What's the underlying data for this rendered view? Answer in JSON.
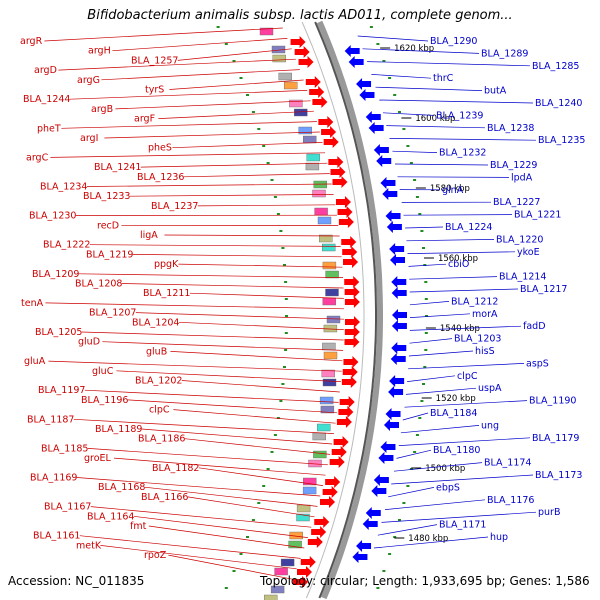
{
  "title": "Bifidobacterium animalis subsp. lactis AD011, complete genom...",
  "accession_text": "Accession: NC_011835",
  "topology_text": "Topology: circular; Length: 1,933,695 bp; Genes: 1,586",
  "colors": {
    "forward_label": "#cc0000",
    "reverse_label": "#0000cc",
    "forward_arrow": "#ff0000",
    "reverse_arrow": "#0000ff",
    "backbone": "#777777",
    "tick": "#228b22"
  },
  "scale_ticks": [
    "1620 kbp",
    "1600 kbp",
    "1580 kbp",
    "1560 kbp",
    "1540 kbp",
    "1520 kbp",
    "1500 kbp",
    "1480 kbp"
  ],
  "forward_genes": [
    "argR",
    "argH",
    "BLA_1257",
    "argD",
    "argG",
    "tyrS",
    "BLA_1244",
    "argB",
    "argF",
    "pheT",
    "argI",
    "pheS",
    "argC",
    "BLA_1241",
    "BLA_1236",
    "BLA_1234",
    "BLA_1233",
    "BLA_1237",
    "BLA_1230",
    "recD",
    "ligA",
    "BLA_1222",
    "BLA_1219",
    "ppgK",
    "BLA_1209",
    "BLA_1208",
    "BLA_1211",
    "tenA",
    "BLA_1207",
    "BLA_1204",
    "BLA_1205",
    "gluD",
    "gluB",
    "gluA",
    "gluC",
    "BLA_1202",
    "BLA_1197",
    "BLA_1196",
    "clpC",
    "BLA_1187",
    "BLA_1189",
    "BLA_1186",
    "BLA_1185",
    "groEL",
    "BLA_1182",
    "BLA_1169",
    "BLA_1168",
    "BLA_1166",
    "BLA_1167",
    "BLA_1164",
    "fmt",
    "BLA_1161",
    "metK",
    "rpoZ"
  ],
  "reverse_genes": [
    "BLA_1290",
    "BLA_1289",
    "BLA_1285",
    "thrC",
    "butA",
    "BLA_1240",
    "BLA_1239",
    "BLA_1238",
    "BLA_1235",
    "BLA_1232",
    "BLA_1229",
    "lpdA",
    "glnA",
    "BLA_1227",
    "BLA_1221",
    "BLA_1224",
    "BLA_1220",
    "ykoE",
    "cbiO",
    "BLA_1214",
    "BLA_1217",
    "BLA_1212",
    "morA",
    "fadD",
    "BLA_1203",
    "hisS",
    "aspS",
    "clpC",
    "uspA",
    "BLA_1190",
    "BLA_1184",
    "ung",
    "BLA_1179",
    "BLA_1180",
    "BLA_1174",
    "BLA_1173",
    "ebpS",
    "BLA_1176",
    "purB",
    "BLA_1171",
    "hup"
  ]
}
